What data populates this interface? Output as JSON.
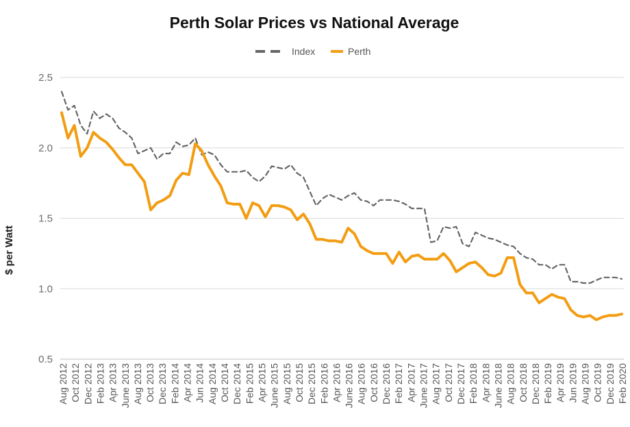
{
  "chart_data": {
    "type": "line",
    "title": "Perth Solar Prices vs National Average",
    "xlabel": "",
    "ylabel": "$ per Watt",
    "ylim": [
      0.5,
      2.5
    ],
    "yticks": [
      "0.5",
      "1.0",
      "1.5",
      "2.0",
      "2.5"
    ],
    "grid": true,
    "legend_position": "top-center",
    "x_tick_labels": [
      "Aug 2012",
      "Oct 2012",
      "Dec 2012",
      "Feb 2013",
      "Apr 2013",
      "June 2013",
      "Aug 2013",
      "Oct 2013",
      "Dec 2013",
      "Feb 2014",
      "Apr 2014",
      "Jun 2014",
      "Aug 2014",
      "Oct 2014",
      "Dec 2014",
      "Feb 2015",
      "Apr 2015",
      "June 2015",
      "Aug 2015",
      "Oct 2015",
      "Dec 2015",
      "Feb 2016",
      "Apr 2016",
      "June 2016",
      "Aug 2016",
      "Oct 2016",
      "Dec 2016",
      "Feb 2017",
      "Apr 2017",
      "June 2017",
      "Aug 2017",
      "Oct 2017",
      "Dec 2017",
      "Feb 2018",
      "Apr 2018",
      "June 2018",
      "Aug 2018",
      "Oct 2018",
      "Dec 2018",
      "Feb 2019",
      "Apr 2019",
      "Jun 2019",
      "Aug 2019",
      "Oct 2019",
      "Dec 2019",
      "Feb 2020"
    ],
    "series": [
      {
        "name": "Index",
        "color": "#666666",
        "style": "dashed",
        "values": [
          2.4,
          2.27,
          2.3,
          2.16,
          2.1,
          2.26,
          2.21,
          2.24,
          2.21,
          2.14,
          2.11,
          2.07,
          1.96,
          1.98,
          2.0,
          1.92,
          1.96,
          1.96,
          2.04,
          2.01,
          2.02,
          2.07,
          1.95,
          1.97,
          1.95,
          1.88,
          1.83,
          1.83,
          1.83,
          1.84,
          1.79,
          1.76,
          1.8,
          1.87,
          1.86,
          1.85,
          1.88,
          1.82,
          1.79,
          1.69,
          1.59,
          1.64,
          1.67,
          1.65,
          1.63,
          1.66,
          1.68,
          1.63,
          1.62,
          1.59,
          1.63,
          1.63,
          1.63,
          1.62,
          1.6,
          1.57,
          1.57,
          1.57,
          1.33,
          1.34,
          1.44,
          1.43,
          1.44,
          1.32,
          1.3,
          1.4,
          1.38,
          1.36,
          1.35,
          1.33,
          1.31,
          1.3,
          1.25,
          1.22,
          1.21,
          1.17,
          1.17,
          1.14,
          1.17,
          1.17,
          1.05,
          1.05,
          1.04,
          1.04,
          1.06,
          1.08,
          1.08,
          1.08,
          1.07
        ]
      },
      {
        "name": "Perth",
        "color": "#f29d12",
        "style": "solid",
        "values": [
          2.25,
          2.07,
          2.16,
          1.94,
          2.0,
          2.11,
          2.07,
          2.04,
          1.99,
          1.93,
          1.88,
          1.88,
          1.82,
          1.76,
          1.56,
          1.61,
          1.63,
          1.66,
          1.77,
          1.82,
          1.81,
          2.03,
          1.98,
          1.88,
          1.8,
          1.73,
          1.61,
          1.6,
          1.6,
          1.5,
          1.61,
          1.59,
          1.51,
          1.59,
          1.59,
          1.58,
          1.56,
          1.49,
          1.53,
          1.46,
          1.35,
          1.35,
          1.34,
          1.34,
          1.33,
          1.43,
          1.39,
          1.3,
          1.27,
          1.25,
          1.25,
          1.25,
          1.18,
          1.26,
          1.19,
          1.23,
          1.24,
          1.21,
          1.21,
          1.21,
          1.25,
          1.2,
          1.12,
          1.15,
          1.18,
          1.19,
          1.15,
          1.1,
          1.09,
          1.11,
          1.22,
          1.22,
          1.03,
          0.97,
          0.97,
          0.9,
          0.93,
          0.96,
          0.94,
          0.93,
          0.85,
          0.81,
          0.8,
          0.81,
          0.78,
          0.8,
          0.81,
          0.81,
          0.82
        ]
      }
    ]
  }
}
